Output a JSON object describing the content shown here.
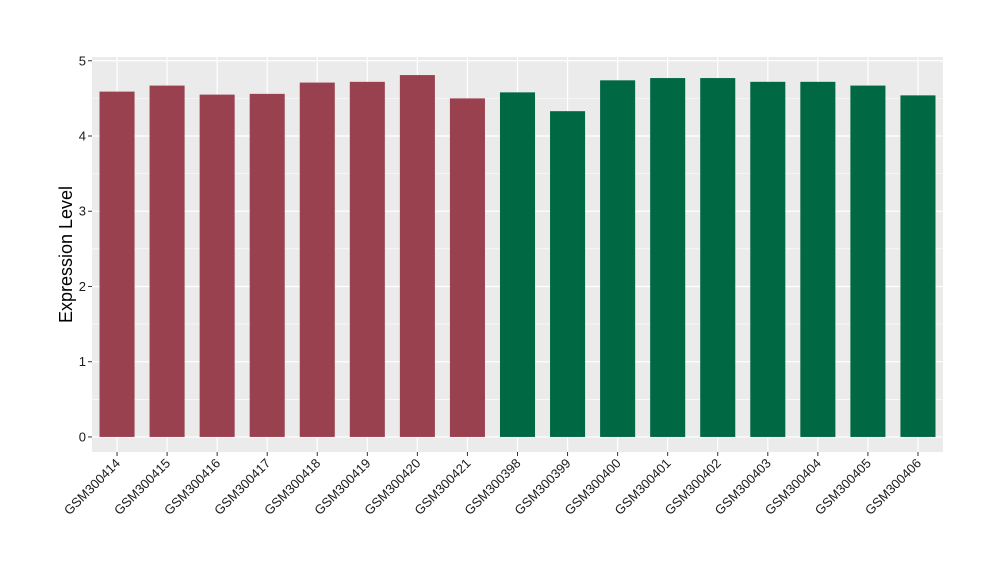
{
  "chart_data": {
    "type": "bar",
    "title": "",
    "xlabel": "",
    "ylabel": "Expression Level",
    "ylim": [
      -0.2,
      5.05
    ],
    "yticks": [
      0,
      1,
      2,
      3,
      4,
      5
    ],
    "grid": true,
    "legend": "none",
    "categories": [
      "GSM300414",
      "GSM300415",
      "GSM300416",
      "GSM300417",
      "GSM300418",
      "GSM300419",
      "GSM300420",
      "GSM300421",
      "GSM300398",
      "GSM300399",
      "GSM300400",
      "GSM300401",
      "GSM300402",
      "GSM300403",
      "GSM300404",
      "GSM300405",
      "GSM300406"
    ],
    "values": [
      4.59,
      4.67,
      4.55,
      4.56,
      4.71,
      4.72,
      4.81,
      4.5,
      4.58,
      4.33,
      4.74,
      4.77,
      4.77,
      4.72,
      4.72,
      4.67,
      4.54
    ],
    "groups": [
      0,
      0,
      0,
      0,
      0,
      0,
      0,
      0,
      1,
      1,
      1,
      1,
      1,
      1,
      1,
      1,
      1
    ],
    "group_colors": [
      "#9a4150",
      "#016844"
    ],
    "panel_color": "#ebebeb",
    "grid_color": "#ffffff"
  }
}
